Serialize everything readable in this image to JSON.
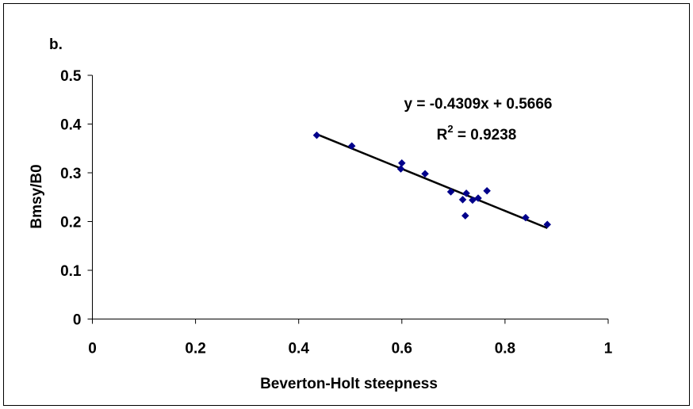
{
  "panel_label": "b.",
  "chart_data": {
    "type": "scatter",
    "xlabel": "Beverton-Holt steepness",
    "ylabel": "Bmsy/B0",
    "xlim": [
      0,
      1
    ],
    "ylim": [
      0,
      0.5
    ],
    "x_ticks": [
      "0",
      "0.2",
      "0.4",
      "0.6",
      "0.8",
      "1"
    ],
    "y_ticks": [
      "0",
      "0.1",
      "0.2",
      "0.3",
      "0.4",
      "0.5"
    ],
    "grid": false,
    "legend": "none",
    "marker_color": "#00008B",
    "points": [
      {
        "x": 0.435,
        "y": 0.377
      },
      {
        "x": 0.503,
        "y": 0.355
      },
      {
        "x": 0.6,
        "y": 0.32
      },
      {
        "x": 0.598,
        "y": 0.308
      },
      {
        "x": 0.645,
        "y": 0.298
      },
      {
        "x": 0.695,
        "y": 0.261
      },
      {
        "x": 0.718,
        "y": 0.245
      },
      {
        "x": 0.725,
        "y": 0.258
      },
      {
        "x": 0.737,
        "y": 0.244
      },
      {
        "x": 0.748,
        "y": 0.248
      },
      {
        "x": 0.765,
        "y": 0.263
      },
      {
        "x": 0.723,
        "y": 0.212
      },
      {
        "x": 0.84,
        "y": 0.208
      },
      {
        "x": 0.882,
        "y": 0.194
      }
    ],
    "trendline": {
      "slope": -0.4309,
      "intercept": 0.5666,
      "x_range": [
        0.435,
        0.882
      ],
      "equation_label": "y = -0.4309x + 0.5666",
      "r2_prefix": "R",
      "r2_exponent": "2",
      "r2_value": " = 0.9238"
    }
  }
}
